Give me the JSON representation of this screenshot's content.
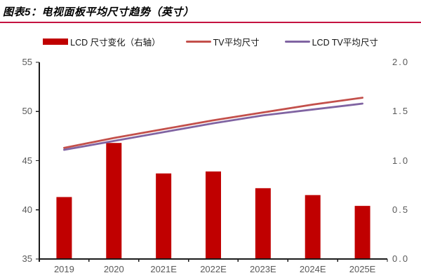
{
  "header": {
    "title": "图表5：电视面板平均尺寸趋势（英寸）",
    "accent_color": "#C41240"
  },
  "legend": {
    "items": [
      {
        "label": "LCD 尺寸变化（右轴）",
        "swatch": "bar",
        "color": "#C00000"
      },
      {
        "label": "TV平均尺寸",
        "swatch": "line",
        "color": "#C3504B"
      },
      {
        "label": "LCD TV平均尺寸",
        "swatch": "line",
        "color": "#8064A2"
      }
    ]
  },
  "chart_data": {
    "type": "combo",
    "title": "电视面板平均尺寸趋势（英寸）",
    "categories": [
      "2019",
      "2020",
      "2021E",
      "2022E",
      "2023E",
      "2024E",
      "2025E"
    ],
    "series": [
      {
        "name": "LCD 尺寸变化（右轴）",
        "type": "bar",
        "axis": "right",
        "color": "#C00000",
        "values": [
          0.63,
          1.18,
          0.87,
          0.89,
          0.72,
          0.65,
          0.54
        ]
      },
      {
        "name": "TV平均尺寸",
        "type": "line",
        "axis": "left",
        "color": "#C3504B",
        "values": [
          46.3,
          47.3,
          48.2,
          49.1,
          49.9,
          50.7,
          51.4
        ]
      },
      {
        "name": "LCD TV平均尺寸",
        "type": "line",
        "axis": "left",
        "color": "#8064A2",
        "values": [
          46.1,
          47.0,
          47.9,
          48.8,
          49.6,
          50.2,
          50.8
        ]
      }
    ],
    "left_axis": {
      "min": 35,
      "max": 55,
      "tick_labels": [
        "55",
        "50",
        "45",
        "40",
        "35"
      ]
    },
    "right_axis": {
      "min": 0.0,
      "max": 2.0,
      "tick_labels": [
        "2.0",
        "1.5",
        "1.0",
        "0.5",
        "0.0"
      ]
    },
    "grid": false,
    "legend_position": "top",
    "axis_color": "#1a1a1a",
    "tick_text_color": "#595959"
  }
}
